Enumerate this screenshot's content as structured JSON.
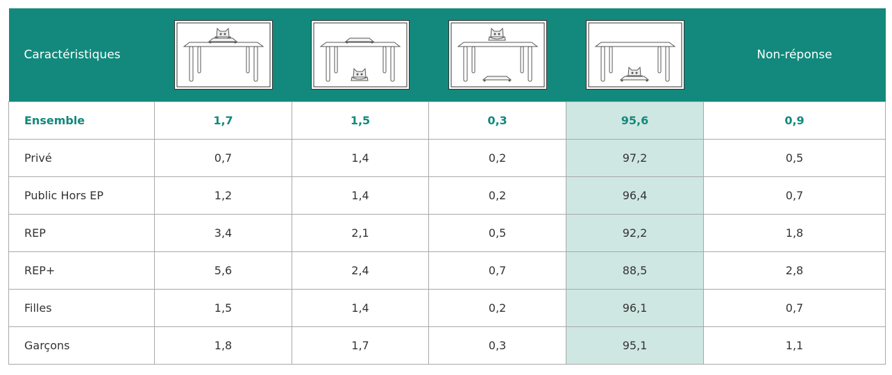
{
  "table": {
    "header": {
      "first": "Caractéristiques",
      "last": "Non-réponse"
    },
    "rows": [
      [
        "Ensemble",
        "1,7",
        "1,5",
        "0,3",
        "95,6",
        "0,9"
      ],
      [
        "Privé",
        "0,7",
        "1,4",
        "0,2",
        "97,2",
        "0,5"
      ],
      [
        "Public Hors EP",
        "1,2",
        "1,4",
        "0,2",
        "96,4",
        "0,7"
      ],
      [
        "REP",
        "3,4",
        "2,1",
        "0,5",
        "92,2",
        "1,8"
      ],
      [
        "REP+",
        "5,6",
        "2,4",
        "0,7",
        "88,5",
        "2,8"
      ],
      [
        "Filles",
        "1,5",
        "1,4",
        "0,2",
        "96,1",
        "0,7"
      ],
      [
        "Garçons",
        "1,8",
        "1,7",
        "0,3",
        "95,1",
        "1,1"
      ]
    ]
  }
}
